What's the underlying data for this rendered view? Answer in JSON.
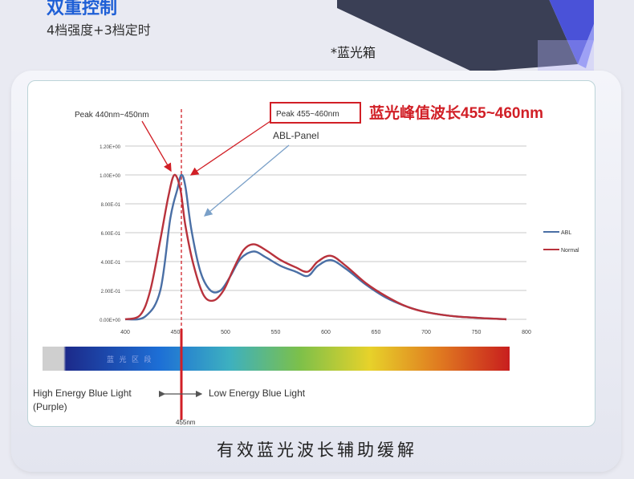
{
  "header": {
    "title": "双重控制",
    "subtitle": "4档强度+3档定时",
    "box_caption": "*蓝光箱"
  },
  "caption": "有效蓝光波长辅助缓解",
  "colors": {
    "abl": "#4a6fa5",
    "normal": "#b8323c",
    "title_blue": "#1e5fd6",
    "highlight_red": "#d11f26"
  },
  "chart_data": {
    "type": "line",
    "xlim": [
      400,
      800
    ],
    "ylim": [
      0,
      1.2
    ],
    "x_ticks": [
      "400",
      "450",
      "500",
      "550",
      "600",
      "650",
      "700",
      "750",
      "800"
    ],
    "y_ticks": [
      "1.20E+00",
      "1.00E+00",
      "8.00E-01",
      "6.00E-01",
      "4.00E-01",
      "2.00E-01",
      "0.00E+00"
    ],
    "grid": true,
    "legend_position": "right",
    "series": [
      {
        "name": "ABL",
        "color": "#4a6fa5",
        "points": [
          [
            400,
            0
          ],
          [
            420,
            0.02
          ],
          [
            435,
            0.2
          ],
          [
            445,
            0.7
          ],
          [
            452,
            0.9
          ],
          [
            456,
            1.0
          ],
          [
            460,
            0.92
          ],
          [
            466,
            0.62
          ],
          [
            475,
            0.33
          ],
          [
            485,
            0.2
          ],
          [
            495,
            0.2
          ],
          [
            505,
            0.3
          ],
          [
            515,
            0.42
          ],
          [
            528,
            0.47
          ],
          [
            540,
            0.43
          ],
          [
            555,
            0.37
          ],
          [
            570,
            0.33
          ],
          [
            582,
            0.3
          ],
          [
            592,
            0.37
          ],
          [
            605,
            0.41
          ],
          [
            620,
            0.35
          ],
          [
            640,
            0.24
          ],
          [
            660,
            0.15
          ],
          [
            680,
            0.09
          ],
          [
            700,
            0.05
          ],
          [
            730,
            0.02
          ],
          [
            780,
            0
          ]
        ]
      },
      {
        "name": "Normal",
        "color": "#b8323c",
        "points": [
          [
            400,
            0
          ],
          [
            415,
            0.03
          ],
          [
            425,
            0.2
          ],
          [
            435,
            0.55
          ],
          [
            443,
            0.85
          ],
          [
            449,
            1.0
          ],
          [
            455,
            0.9
          ],
          [
            460,
            0.65
          ],
          [
            468,
            0.38
          ],
          [
            478,
            0.17
          ],
          [
            488,
            0.13
          ],
          [
            498,
            0.2
          ],
          [
            508,
            0.35
          ],
          [
            518,
            0.48
          ],
          [
            528,
            0.52
          ],
          [
            540,
            0.48
          ],
          [
            555,
            0.41
          ],
          [
            570,
            0.36
          ],
          [
            582,
            0.33
          ],
          [
            592,
            0.4
          ],
          [
            605,
            0.44
          ],
          [
            620,
            0.37
          ],
          [
            640,
            0.25
          ],
          [
            660,
            0.16
          ],
          [
            680,
            0.09
          ],
          [
            700,
            0.05
          ],
          [
            730,
            0.02
          ],
          [
            780,
            0
          ]
        ]
      }
    ],
    "annotations": {
      "peak_normal": "Peak 440nm~450nm",
      "peak_abl": "Peak 455~460nm",
      "peak_cn": "蓝光峰值波长455~460nm",
      "panel_label": "ABL-Panel",
      "spectrum_text": "蓝 光 区 段",
      "high_energy": "High Energy Blue Light",
      "purple": "(Purple)",
      "low_energy": "Low Energy Blue Light",
      "marker": "455nm"
    }
  }
}
